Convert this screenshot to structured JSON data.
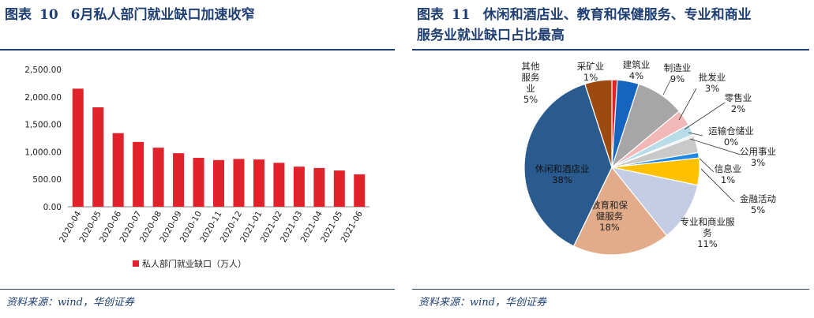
{
  "left": {
    "title_prefix": "图表",
    "title_number": "10",
    "title_text": "6月私人部门就业缺口加速收窄",
    "source": "资料来源：wind，华创证券"
  },
  "right": {
    "title_prefix": "图表",
    "title_number": "11",
    "title_text": "休闲和酒店业、教育和保健服务、专业和商业",
    "title_text2": "服务业就业缺口占比最高",
    "source": "资料来源：wind，华创证券"
  },
  "chart_data": [
    {
      "type": "bar",
      "categories": [
        "2020-04",
        "2020-05",
        "2020-06",
        "2020-07",
        "2020-08",
        "2020-09",
        "2020-10",
        "2020-11",
        "2020-12",
        "2021-01",
        "2021-02",
        "2021-03",
        "2021-04",
        "2021-05",
        "2021-06"
      ],
      "series": [
        {
          "name": "私人部门就业缺口（万人）",
          "values": [
            2150,
            1810,
            1340,
            1180,
            1075,
            975,
            890,
            850,
            870,
            860,
            800,
            730,
            705,
            660,
            590
          ],
          "color": "#e0222a"
        }
      ],
      "yticks": [
        "0.00",
        "500.00",
        "1,000.00",
        "1,500.00",
        "2,000.00",
        "2,500.00"
      ],
      "ylim": [
        0,
        2500
      ],
      "grid": false,
      "legend_position": "bottom"
    },
    {
      "type": "pie",
      "slices": [
        {
          "label": "采矿业",
          "percent": "1%",
          "value": 1,
          "color": "#e0222a"
        },
        {
          "label": "建筑业",
          "percent": "4%",
          "value": 4,
          "color": "#1565c0"
        },
        {
          "label": "制造业",
          "percent": "9%",
          "value": 9,
          "color": "#a6a6a6"
        },
        {
          "label": "批发业",
          "percent": "3%",
          "value": 3,
          "color": "#f2b8b8"
        },
        {
          "label": "零售业",
          "percent": "2%",
          "value": 2,
          "color": "#b8dde8"
        },
        {
          "label": "运输仓储业",
          "percent": "0%",
          "value": 0.4,
          "color": "#e7e6e6"
        },
        {
          "label": "公用事业",
          "percent": "3%",
          "value": 3,
          "color": "#c9c9c9"
        },
        {
          "label": "信息业",
          "percent": "1%",
          "value": 1,
          "color": "#1e88e5"
        },
        {
          "label": "金融活动",
          "percent": "5%",
          "value": 5,
          "color": "#ffc000"
        },
        {
          "label": "专业和商业服务",
          "percent": "11%",
          "value": 11,
          "color": "#c5cde4"
        },
        {
          "label": "教育和保健服务",
          "percent": "18%",
          "value": 18,
          "color": "#e2ab8a"
        },
        {
          "label": "休闲和酒店业",
          "percent": "38%",
          "value": 38,
          "color": "#2a5b8f"
        },
        {
          "label": "其他服务业",
          "percent": "5%",
          "value": 5,
          "color": "#9c4a10"
        }
      ],
      "legend_position": "none"
    }
  ]
}
